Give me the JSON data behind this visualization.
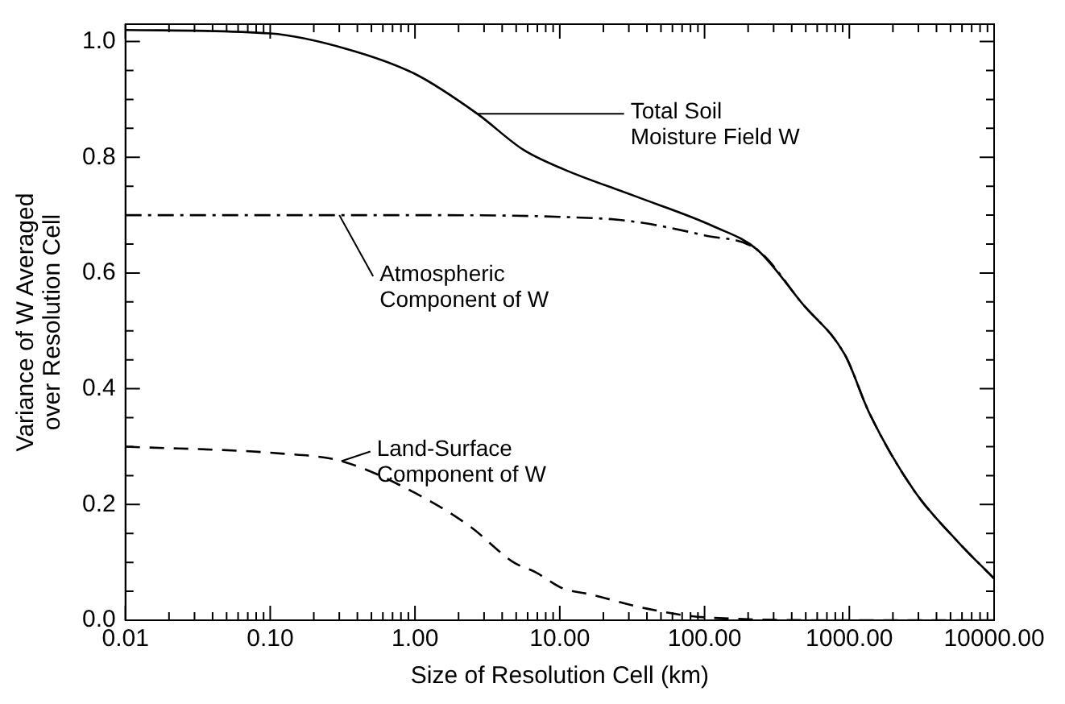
{
  "chart_data": {
    "type": "line",
    "xlabel": "Size of Resolution Cell (km)",
    "ylabel": "Variance of W Averaged\nover Resolution Cell",
    "log": "x",
    "grid": false,
    "legend": false,
    "marker": "none",
    "xlim": [
      0.01,
      10000
    ],
    "ylim": [
      0,
      1.03
    ],
    "xticks": [
      {
        "value": 0.01,
        "label": "0.01"
      },
      {
        "value": 0.02,
        "label": null
      },
      {
        "value": 0.03,
        "label": null
      },
      {
        "value": 0.04,
        "label": null
      },
      {
        "value": 0.05,
        "label": null
      },
      {
        "value": 0.06,
        "label": null
      },
      {
        "value": 0.07,
        "label": null
      },
      {
        "value": 0.08,
        "label": null
      },
      {
        "value": 0.09,
        "label": null
      },
      {
        "value": 0.1,
        "label": "0.10"
      },
      {
        "value": 0.2,
        "label": null
      },
      {
        "value": 0.3,
        "label": null
      },
      {
        "value": 0.4,
        "label": null
      },
      {
        "value": 0.5,
        "label": null
      },
      {
        "value": 0.6,
        "label": null
      },
      {
        "value": 0.7,
        "label": null
      },
      {
        "value": 0.8,
        "label": null
      },
      {
        "value": 0.9,
        "label": null
      },
      {
        "value": 1,
        "label": "1.00"
      },
      {
        "value": 2,
        "label": null
      },
      {
        "value": 3,
        "label": null
      },
      {
        "value": 4,
        "label": null
      },
      {
        "value": 5,
        "label": null
      },
      {
        "value": 6,
        "label": null
      },
      {
        "value": 7,
        "label": null
      },
      {
        "value": 8,
        "label": null
      },
      {
        "value": 9,
        "label": null
      },
      {
        "value": 10,
        "label": "10.00"
      },
      {
        "value": 20,
        "label": null
      },
      {
        "value": 30,
        "label": null
      },
      {
        "value": 40,
        "label": null
      },
      {
        "value": 50,
        "label": null
      },
      {
        "value": 60,
        "label": null
      },
      {
        "value": 70,
        "label": null
      },
      {
        "value": 80,
        "label": null
      },
      {
        "value": 90,
        "label": null
      },
      {
        "value": 100,
        "label": "100.00"
      },
      {
        "value": 200,
        "label": null
      },
      {
        "value": 300,
        "label": null
      },
      {
        "value": 400,
        "label": null
      },
      {
        "value": 500,
        "label": null
      },
      {
        "value": 600,
        "label": null
      },
      {
        "value": 700,
        "label": null
      },
      {
        "value": 800,
        "label": null
      },
      {
        "value": 900,
        "label": null
      },
      {
        "value": 1000,
        "label": "1000.00"
      },
      {
        "value": 2000,
        "label": null
      },
      {
        "value": 3000,
        "label": null
      },
      {
        "value": 4000,
        "label": null
      },
      {
        "value": 5000,
        "label": null
      },
      {
        "value": 6000,
        "label": null
      },
      {
        "value": 7000,
        "label": null
      },
      {
        "value": 8000,
        "label": null
      },
      {
        "value": 9000,
        "label": null
      },
      {
        "value": 10000,
        "label": "10000.00"
      }
    ],
    "yticks": [
      {
        "value": 0,
        "label": "0.0"
      },
      {
        "value": 0.05,
        "label": null
      },
      {
        "value": 0.1,
        "label": null
      },
      {
        "value": 0.15,
        "label": null
      },
      {
        "value": 0.2,
        "label": "0.2"
      },
      {
        "value": 0.25,
        "label": null
      },
      {
        "value": 0.3,
        "label": null
      },
      {
        "value": 0.35,
        "label": null
      },
      {
        "value": 0.4,
        "label": "0.4"
      },
      {
        "value": 0.45,
        "label": null
      },
      {
        "value": 0.5,
        "label": null
      },
      {
        "value": 0.55,
        "label": null
      },
      {
        "value": 0.6,
        "label": "0.6"
      },
      {
        "value": 0.65,
        "label": null
      },
      {
        "value": 0.7,
        "label": null
      },
      {
        "value": 0.75,
        "label": null
      },
      {
        "value": 0.8,
        "label": "0.8"
      },
      {
        "value": 0.85,
        "label": null
      },
      {
        "value": 0.9,
        "label": null
      },
      {
        "value": 0.95,
        "label": null
      },
      {
        "value": 1,
        "label": "1.0"
      }
    ],
    "series": [
      {
        "color": "#000000",
        "line_style": "solid",
        "x": [
          0.01,
          0.1,
          0.34,
          1,
          2.7,
          5.6,
          10.7,
          33,
          117,
          232,
          474,
          930,
          1380,
          2800,
          5600,
          10000
        ],
        "values": [
          1.02,
          1.014,
          0.987,
          0.944,
          0.875,
          0.813,
          0.779,
          0.733,
          0.68,
          0.64,
          0.547,
          0.459,
          0.357,
          0.224,
          0.136,
          0.072
        ]
      },
      {
        "color": "#000000",
        "line_style": "dashdot",
        "x": [
          0.01,
          1,
          10,
          30,
          100,
          232,
          474,
          930,
          1380,
          2800,
          5600,
          10000
        ],
        "values": [
          0.7,
          0.7,
          0.697,
          0.69,
          0.665,
          0.64,
          0.547,
          0.459,
          0.357,
          0.224,
          0.136,
          0.072
        ]
      },
      {
        "color": "#000000",
        "line_style": "dashed",
        "x": [
          0.01,
          0.12,
          0.31,
          1,
          2.4,
          4.8,
          6.8,
          10.5,
          16,
          40,
          100,
          1000,
          10000
        ],
        "values": [
          0.3,
          0.288,
          0.275,
          0.22,
          0.162,
          0.1,
          0.083,
          0.055,
          0.045,
          0.02,
          0.005,
          0,
          0
        ]
      }
    ],
    "annotations": [
      {
        "text": "Total Soil\nMoisture Field W",
        "x": 2.7,
        "y": 0.875
      },
      {
        "text": "Atmospheric\nComponent of W",
        "x": 0.3,
        "y": 0.7
      },
      {
        "text": "Land-Surface\nComponent of W",
        "x": 0.31,
        "y": 0.275
      }
    ]
  }
}
